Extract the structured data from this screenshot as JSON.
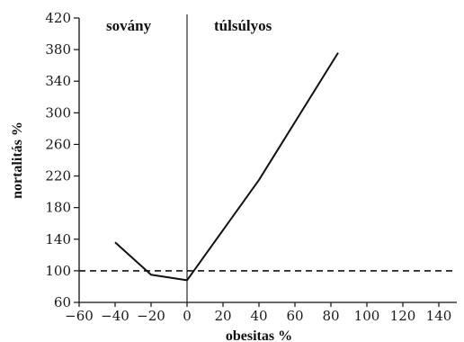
{
  "chart_data": {
    "type": "line",
    "xlabel": "obesitas %",
    "ylabel": "nortalitás %",
    "xlim": [
      -60,
      150
    ],
    "ylim": [
      60,
      420
    ],
    "xticks": [
      -60,
      -40,
      -20,
      0,
      20,
      40,
      60,
      80,
      100,
      120,
      140
    ],
    "yticks": [
      60,
      100,
      140,
      180,
      220,
      260,
      300,
      340,
      380,
      420
    ],
    "x_tick_labels": [
      "−60",
      "−40",
      "−20",
      "0",
      "20",
      "40",
      "60",
      "80",
      "100",
      "120",
      "140"
    ],
    "y_tick_labels": [
      "60",
      "100",
      "140",
      "180",
      "220",
      "260",
      "300",
      "340",
      "380",
      "420"
    ],
    "grid": false,
    "series": [
      {
        "x": [
          -40,
          -20,
          0,
          40,
          84
        ],
        "values": [
          136,
          95,
          88,
          215,
          376
        ],
        "style": "solid",
        "color": "#111111"
      }
    ],
    "reference_lines": [
      {
        "axis": "y",
        "value": 100,
        "style": "dashed",
        "color": "#111111"
      },
      {
        "axis": "x",
        "value": 0,
        "style": "solid",
        "color": "#111111"
      }
    ],
    "annotations": [
      {
        "text": "sovány",
        "region": "left-of-zero"
      },
      {
        "text": "túlsúlyos",
        "region": "right-of-zero"
      }
    ]
  }
}
